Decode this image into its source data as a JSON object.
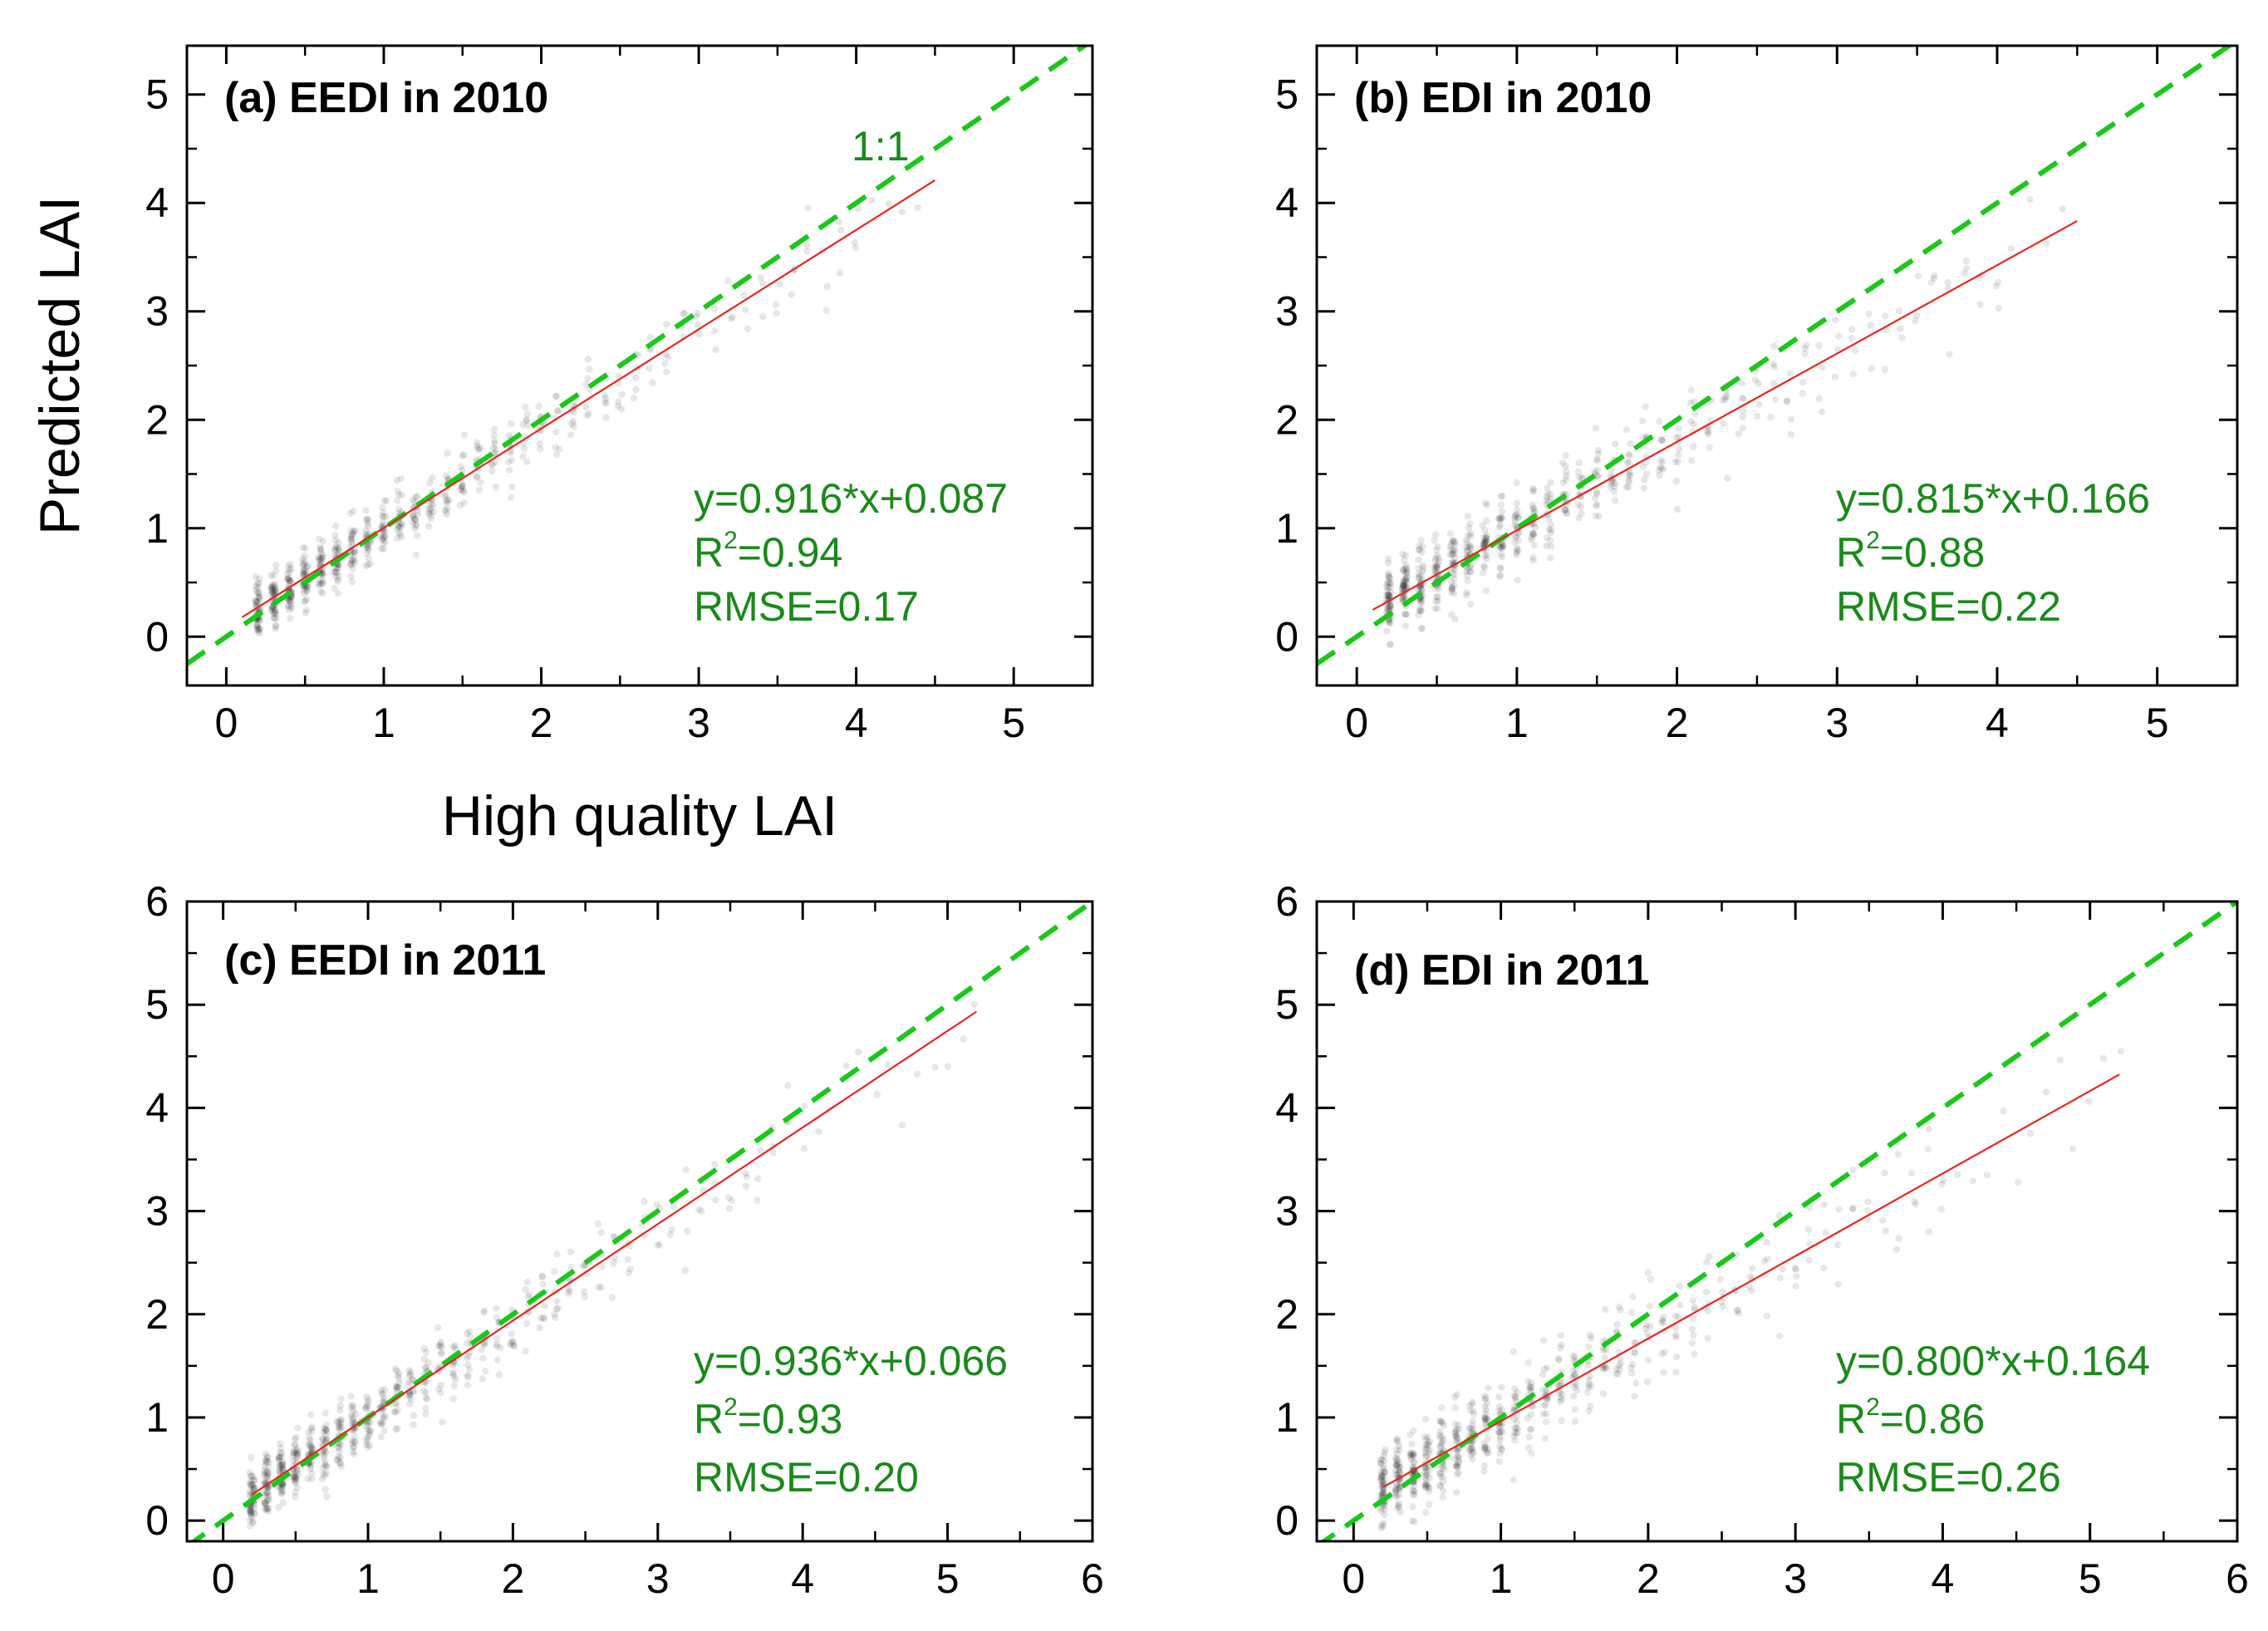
{
  "figure": {
    "ylabel": "Predicted LAI",
    "xlabel": "High quality LAI",
    "colors": {
      "scatter": "#111111",
      "fit_line": "#e8261f",
      "one_to_one": "#19c819",
      "stat_text": "#1a8a1a"
    }
  },
  "chart_data": [
    {
      "type": "scatter",
      "title": "(a) EEDI in 2010",
      "one_to_one_label": "1:1",
      "xlim": [
        -0.25,
        5.5
      ],
      "ylim": [
        -0.45,
        5.45
      ],
      "xticks": [
        0,
        1,
        2,
        3,
        4,
        5
      ],
      "yticks": [
        0,
        1,
        2,
        3,
        4,
        5
      ],
      "fit": {
        "slope": 0.916,
        "intercept": 0.087,
        "x_range": [
          0.1,
          4.5
        ]
      },
      "stats": {
        "equation": "y=0.916*x+0.087",
        "r2_prefix": "R",
        "r2_sup": "2",
        "r2_value": "=0.94",
        "rmse": "RMSE=0.17"
      },
      "scatter": {
        "x_min": 0.2,
        "x_max": 4.4,
        "x_step": 0.1,
        "slope": 0.916,
        "intercept": 0.087,
        "spread": 0.17,
        "seed": 11
      }
    },
    {
      "type": "scatter",
      "title": "(b) EDI in 2010",
      "xlim": [
        -0.25,
        5.5
      ],
      "ylim": [
        -0.45,
        5.45
      ],
      "xticks": [
        0,
        1,
        2,
        3,
        4,
        5
      ],
      "yticks": [
        0,
        1,
        2,
        3,
        4,
        5
      ],
      "fit": {
        "slope": 0.815,
        "intercept": 0.166,
        "x_range": [
          0.1,
          4.5
        ]
      },
      "stats": {
        "equation": "y=0.815*x+0.166",
        "r2_prefix": "R",
        "r2_sup": "2",
        "r2_value": "=0.88",
        "rmse": "RMSE=0.22"
      },
      "scatter": {
        "x_min": 0.2,
        "x_max": 4.4,
        "x_step": 0.1,
        "slope": 0.815,
        "intercept": 0.166,
        "spread": 0.22,
        "seed": 23
      }
    },
    {
      "type": "scatter",
      "title": "(c) EEDI in 2011",
      "xlim": [
        -0.25,
        6.0
      ],
      "ylim": [
        -0.2,
        6.0
      ],
      "xticks": [
        0,
        1,
        2,
        3,
        4,
        5,
        6
      ],
      "yticks": [
        0,
        1,
        2,
        3,
        4,
        5,
        6
      ],
      "fit": {
        "slope": 0.936,
        "intercept": 0.066,
        "x_range": [
          0.2,
          5.2
        ]
      },
      "stats": {
        "equation": "y=0.936*x+0.066",
        "r2_prefix": "R",
        "r2_sup": "2",
        "r2_value": "=0.93",
        "rmse": "RMSE=0.20"
      },
      "scatter": {
        "x_min": 0.2,
        "x_max": 5.2,
        "x_step": 0.1,
        "slope": 0.936,
        "intercept": 0.066,
        "spread": 0.2,
        "seed": 37
      }
    },
    {
      "type": "scatter",
      "title": "(d) EDI in 2011",
      "xlim": [
        -0.25,
        6.0
      ],
      "ylim": [
        -0.2,
        6.0
      ],
      "xticks": [
        0,
        1,
        2,
        3,
        4,
        5,
        6
      ],
      "yticks": [
        0,
        1,
        2,
        3,
        4,
        5,
        6
      ],
      "fit": {
        "slope": 0.8,
        "intercept": 0.164,
        "x_range": [
          0.2,
          5.2
        ]
      },
      "stats": {
        "equation": "y=0.800*x+0.164",
        "r2_prefix": "R",
        "r2_sup": "2",
        "r2_value": "=0.86",
        "rmse": "RMSE=0.26"
      },
      "scatter": {
        "x_min": 0.2,
        "x_max": 5.2,
        "x_step": 0.1,
        "slope": 0.8,
        "intercept": 0.164,
        "spread": 0.26,
        "seed": 53
      }
    }
  ]
}
